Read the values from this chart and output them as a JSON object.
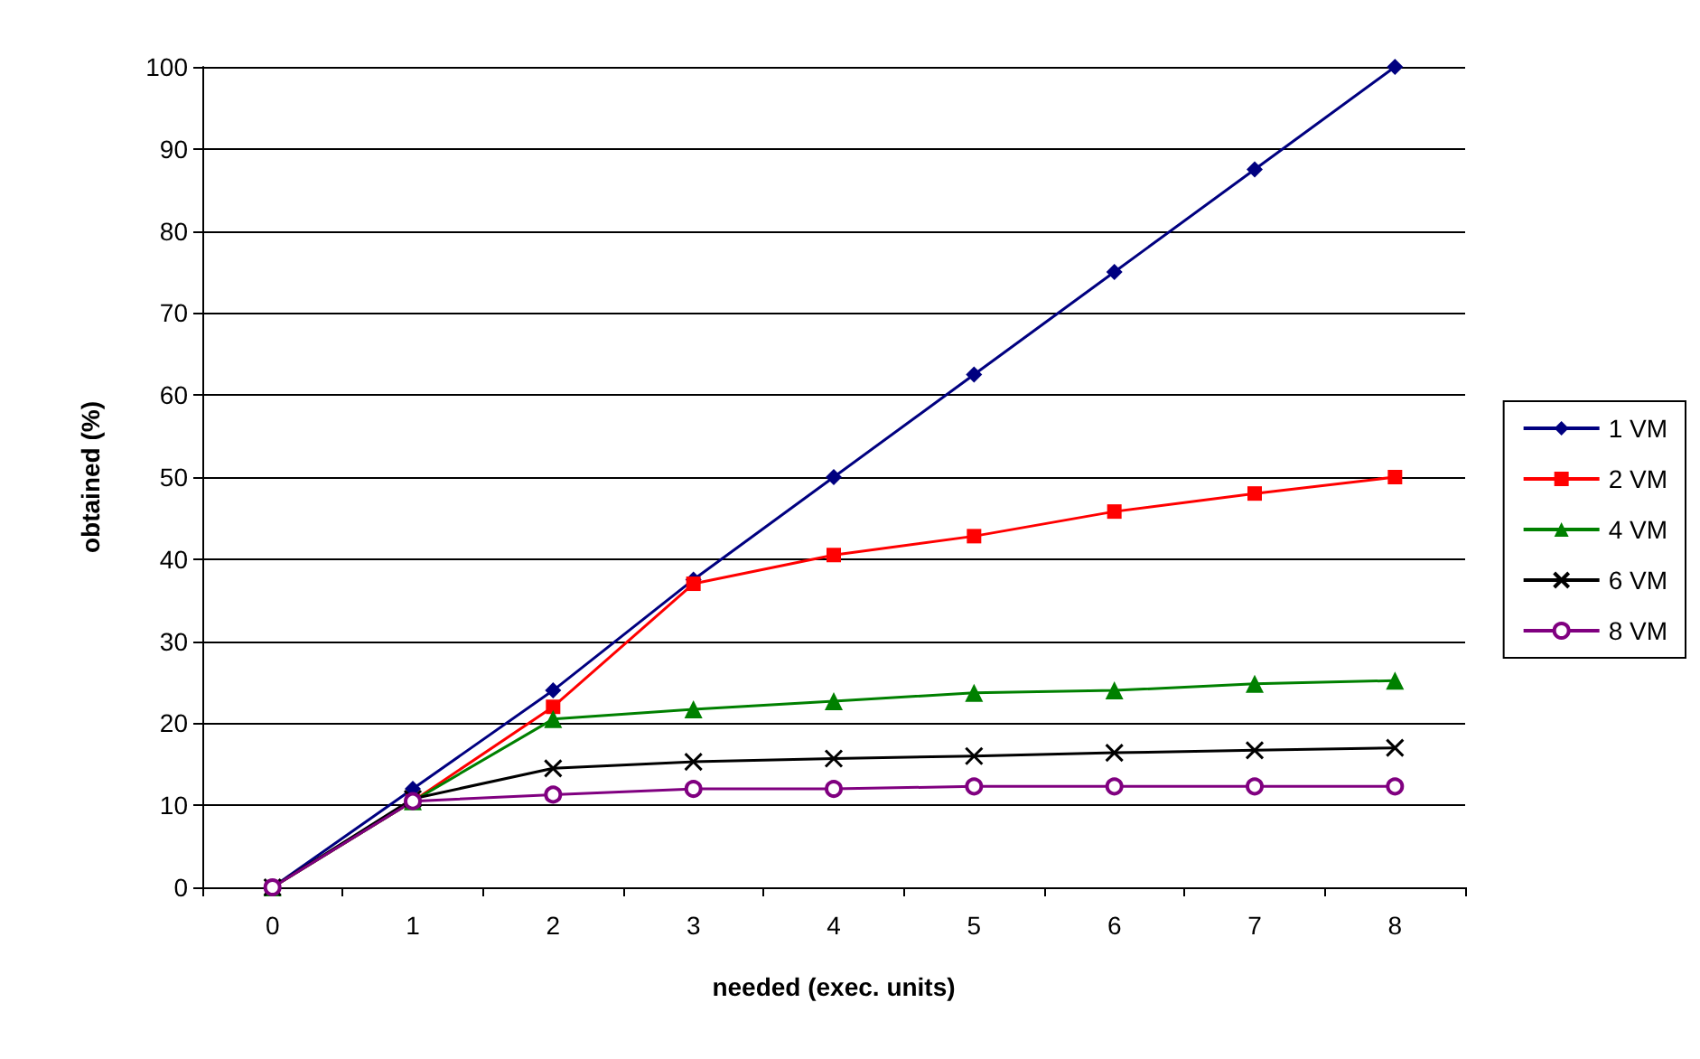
{
  "chart_data": {
    "type": "line",
    "xlabel": "needed (exec. units)",
    "ylabel": "obtained (%)",
    "categories": [
      "0",
      "1",
      "2",
      "3",
      "4",
      "5",
      "6",
      "7",
      "8"
    ],
    "ylim": [
      0,
      100
    ],
    "yticks": [
      0,
      10,
      20,
      30,
      40,
      50,
      60,
      70,
      80,
      90,
      100
    ],
    "grid": "y",
    "legend": "right",
    "series": [
      {
        "name": "1 VM",
        "color": "#000080",
        "marker": "diamond",
        "values": [
          0,
          12,
          24,
          37.5,
          50,
          62.5,
          75,
          87.5,
          100
        ]
      },
      {
        "name": "2 VM",
        "color": "#ff0000",
        "marker": "square",
        "values": [
          0,
          10.5,
          22,
          37,
          40.5,
          42.8,
          45.8,
          48,
          50
        ]
      },
      {
        "name": "4 VM",
        "color": "#008000",
        "marker": "triangle",
        "values": [
          0,
          10.5,
          20.5,
          21.7,
          22.7,
          23.7,
          24,
          24.8,
          25.2
        ]
      },
      {
        "name": "6 VM",
        "color": "#000000",
        "marker": "cross",
        "values": [
          0,
          10.8,
          14.5,
          15.3,
          15.7,
          16,
          16.4,
          16.7,
          17
        ]
      },
      {
        "name": "8 VM",
        "color": "#800080",
        "marker": "circle",
        "values": [
          0,
          10.5,
          11.3,
          12,
          12,
          12.3,
          12.3,
          12.3,
          12.3
        ]
      }
    ]
  }
}
